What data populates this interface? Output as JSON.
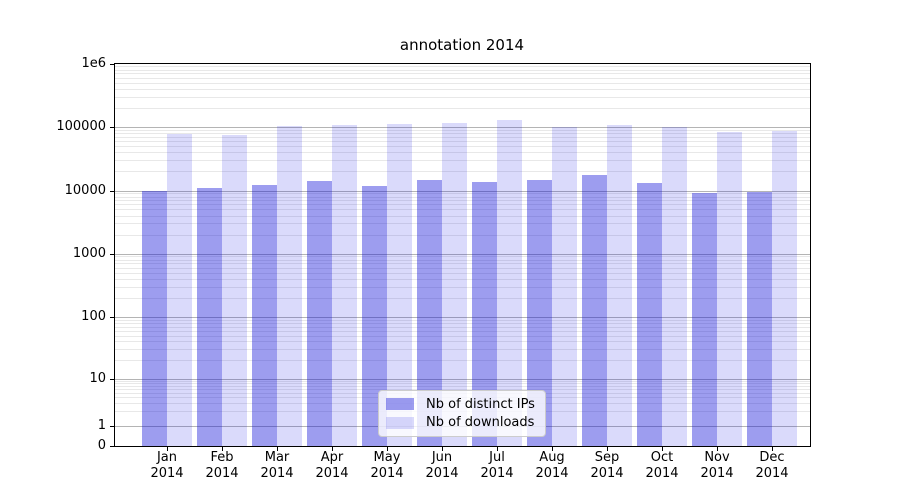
{
  "title": "annotation 2014",
  "chart_data": {
    "type": "bar",
    "title": "annotation 2014",
    "categories": [
      "Jan\n2014",
      "Feb\n2014",
      "Mar\n2014",
      "Apr\n2014",
      "May\n2014",
      "Jun\n2014",
      "Jul\n2014",
      "Aug\n2014",
      "Sep\n2014",
      "Oct\n2014",
      "Nov\n2014",
      "Dec\n2014"
    ],
    "series": [
      {
        "name": "Nb of distinct IPs",
        "color": "#9d9def",
        "fill": "rgba(10,10,215,0.40)",
        "values": [
          9800,
          10900,
          12400,
          14100,
          11900,
          14600,
          13400,
          14600,
          17500,
          13000,
          9000,
          9400
        ]
      },
      {
        "name": "Nb of downloads",
        "color": "#dadaf9",
        "fill": "rgba(10,10,225,0.15)",
        "values": [
          78000,
          75000,
          102000,
          106000,
          110000,
          115000,
          128000,
          100000,
          108000,
          101000,
          84000,
          88000
        ]
      }
    ],
    "yscale": "symlog",
    "ylim": [
      0,
      1000000
    ],
    "yticks": [
      {
        "label": "1e6",
        "value": 1000000
      },
      {
        "label": "100000",
        "value": 100000
      },
      {
        "label": "10000",
        "value": 10000
      },
      {
        "label": "1000",
        "value": 1000
      },
      {
        "label": "100",
        "value": 100
      },
      {
        "label": "10",
        "value": 10
      },
      {
        "label": "1",
        "value": 1
      },
      {
        "label": "0",
        "value": 0
      }
    ],
    "grid": "both",
    "legend_position": "lower center"
  }
}
